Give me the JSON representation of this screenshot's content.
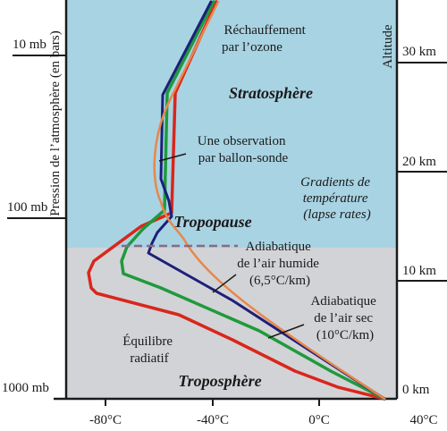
{
  "diagram": {
    "y_axis_left_title": "Pression de l’atmosphère (en bars)",
    "y_axis_right_title": "Altitude",
    "pressure_ticks": [
      "10 mb",
      "100 mb",
      "1000 mb"
    ],
    "altitude_ticks": [
      "30 km",
      "20 km",
      "10 km",
      "0 km"
    ],
    "temperature_ticks": [
      "-80°C",
      "-40°C",
      "0°C",
      "40°C"
    ],
    "regions": {
      "stratosphere": "Stratosphère",
      "troposphere": "Troposphère",
      "tropopause": "Tropopause"
    },
    "labels": {
      "ozone_heating": [
        "Réchauffement",
        "par l’ozone"
      ],
      "observation": [
        "Une observation",
        "par ballon-sonde"
      ],
      "lapse_rates": [
        "Gradients de",
        "température",
        "(lapse rates)"
      ],
      "wet_adiabatic": [
        "Adiabatique",
        "de l’air humide",
        "(6,5°C/km)"
      ],
      "dry_adiabatic": [
        "Adiabatique",
        "de l’air sec",
        "(10°C/km)"
      ],
      "radiative_equilibrium": [
        "Équilibre",
        "radiatif"
      ]
    },
    "colors": {
      "stratosphere_fill": "#a8d3e3",
      "troposphere_fill": "#d2d3d6",
      "radiative_equilibrium": "#d9261c",
      "dry_adiabatic": "#1f9a3c",
      "wet_adiabatic": "#1d1f7a",
      "balloon_observation": "#e8874a",
      "tropopause_dash": "#8a6a82"
    },
    "icons": {
      "curves": "temperature-profile-curves"
    }
  }
}
